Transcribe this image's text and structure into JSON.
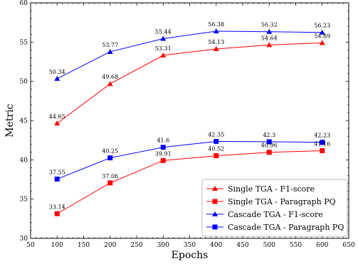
{
  "chart_data": {
    "type": "line",
    "xlabel": "Epochs",
    "ylabel": "Metric",
    "xlim": [
      50,
      650
    ],
    "ylim": [
      30,
      60
    ],
    "xticks": [
      50,
      100,
      150,
      200,
      250,
      300,
      350,
      400,
      450,
      500,
      550,
      600,
      650
    ],
    "yticks": [
      30,
      35,
      40,
      45,
      50,
      55,
      60
    ],
    "grid": false,
    "legend_position": "lower-right",
    "x": [
      100,
      200,
      300,
      400,
      500,
      600
    ],
    "series": [
      {
        "name": "Single TGA - F1-score",
        "color": "#ff0000",
        "marker": "triangle",
        "values": [
          44.65,
          49.68,
          53.31,
          54.13,
          54.64,
          54.89
        ],
        "labels": [
          "44.65",
          "49.68",
          "53.31",
          "54.13",
          "54.64",
          "54.89"
        ]
      },
      {
        "name": "Single TGA - Paragraph PQ",
        "color": "#ff0000",
        "marker": "square",
        "values": [
          33.14,
          37.06,
          39.91,
          40.52,
          40.96,
          41.16
        ],
        "labels": [
          "33.14",
          "37.06",
          "39.91",
          "40.52",
          "40.96",
          "41.16"
        ]
      },
      {
        "name": "Cascade TGA - F1-score",
        "color": "#0000ff",
        "marker": "triangle",
        "values": [
          50.34,
          53.77,
          55.44,
          56.38,
          56.32,
          56.23
        ],
        "labels": [
          "50.34",
          "53.77",
          "55.44",
          "56.38",
          "56.32",
          "56.23"
        ]
      },
      {
        "name": "Cascade TGA - Paragraph PQ",
        "color": "#0000ff",
        "marker": "square",
        "values": [
          37.55,
          40.25,
          41.6,
          42.35,
          42.3,
          42.23
        ],
        "labels": [
          "37.55",
          "40.25",
          "41.6",
          "42.35",
          "42.3",
          "42.23"
        ]
      }
    ]
  }
}
